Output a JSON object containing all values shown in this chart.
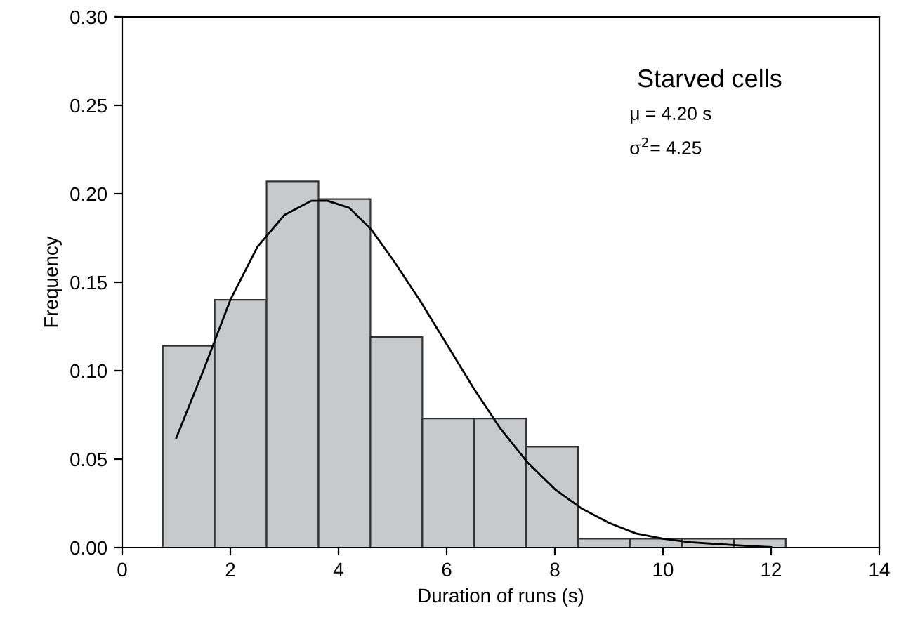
{
  "chart_data": {
    "type": "histogram",
    "xlabel": "Duration of runs (s)",
    "ylabel": "Frequency",
    "bins": [
      0.75,
      1.71,
      2.67,
      3.63,
      4.59,
      5.55,
      6.51,
      7.47,
      8.43,
      9.39,
      10.35,
      11.31,
      12.27
    ],
    "values": [
      0.114,
      0.14,
      0.207,
      0.197,
      0.119,
      0.073,
      0.073,
      0.057,
      0.005,
      0.005,
      0.005,
      0.005
    ],
    "color": "#c8c9cb",
    "series": [
      {
        "type": "line",
        "color": "#000000",
        "x": [
          1.0,
          1.5,
          2.0,
          2.5,
          3.0,
          3.5,
          3.8,
          4.2,
          4.6,
          5.0,
          5.5,
          6.0,
          6.5,
          7.0,
          7.5,
          8.0,
          8.5,
          9.0,
          9.5,
          10.0,
          10.5,
          11.0,
          11.5,
          12.0
        ],
        "values": [
          0.062,
          0.1,
          0.14,
          0.17,
          0.188,
          0.196,
          0.196,
          0.192,
          0.18,
          0.163,
          0.14,
          0.115,
          0.09,
          0.067,
          0.048,
          0.033,
          0.022,
          0.014,
          0.008,
          0.005,
          0.003,
          0.002,
          0.001,
          0.0003
        ]
      }
    ],
    "annotations": [
      "Starved cells",
      "μ = 4.20 s",
      "σ$^{2}$= 4.25"
    ],
    "xlim": [
      0,
      14
    ],
    "xticks": [
      0,
      2,
      4,
      6,
      8,
      10,
      12,
      14
    ],
    "ylim": [
      0,
      0.3
    ],
    "yticks": [
      {
        "value": 0,
        "label": "0.00"
      },
      {
        "value": 0.05,
        "label": "0.05"
      },
      {
        "value": 0.1,
        "label": "0.10"
      },
      {
        "value": 0.15,
        "label": "0.15"
      },
      {
        "value": 0.2,
        "label": "0.20"
      },
      {
        "value": 0.25,
        "label": "0.25"
      },
      {
        "value": 0.3,
        "label": "0.30"
      }
    ],
    "grid": false,
    "legend": false
  }
}
